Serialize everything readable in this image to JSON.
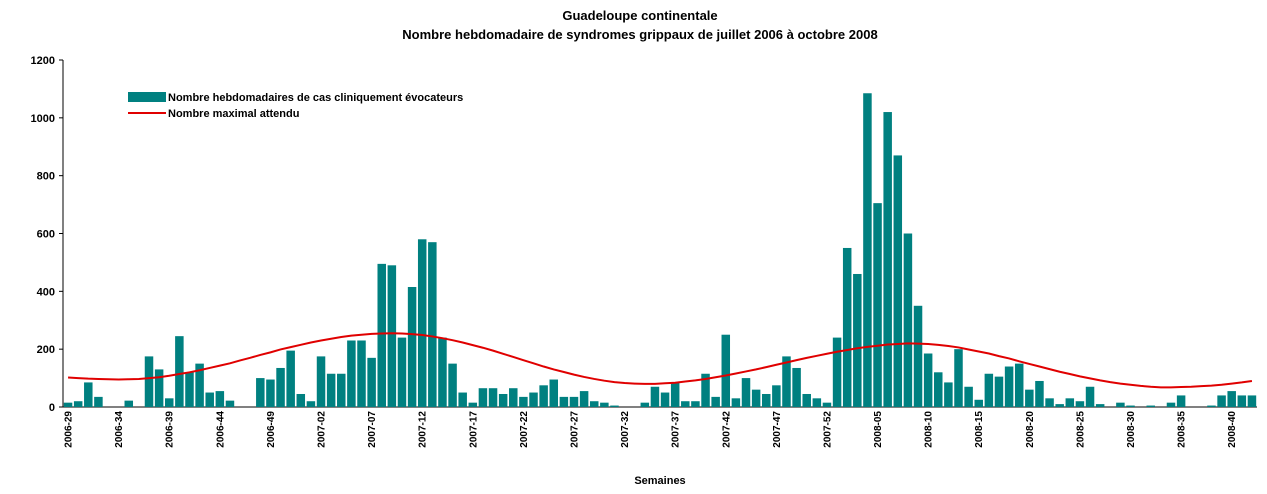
{
  "chart_data": {
    "type": "bar",
    "title": "Guadeloupe continentale",
    "subtitle": "Nombre hebdomadaire de syndromes grippaux de juillet 2006 à octobre 2008",
    "x_label": "Semaines",
    "categories": [
      "2006-29",
      null,
      null,
      null,
      null,
      "2006-34",
      null,
      null,
      null,
      null,
      "2006-39",
      null,
      null,
      null,
      null,
      "2006-44",
      null,
      null,
      null,
      null,
      "2006-49",
      null,
      null,
      null,
      null,
      "2007-02",
      null,
      null,
      null,
      null,
      "2007-07",
      null,
      null,
      null,
      null,
      "2007-12",
      null,
      null,
      null,
      null,
      "2007-17",
      null,
      null,
      null,
      null,
      "2007-22",
      null,
      null,
      null,
      null,
      "2007-27",
      null,
      null,
      null,
      null,
      "2007-32",
      null,
      null,
      null,
      null,
      "2007-37",
      null,
      null,
      null,
      null,
      "2007-42",
      null,
      null,
      null,
      null,
      "2007-47",
      null,
      null,
      null,
      null,
      "2007-52",
      null,
      null,
      null,
      null,
      "2008-05",
      null,
      null,
      null,
      null,
      "2008-10",
      null,
      null,
      null,
      null,
      "2008-15",
      null,
      null,
      null,
      null,
      "2008-20",
      null,
      null,
      null,
      null,
      "2008-25",
      null,
      null,
      null,
      null,
      "2008-30",
      null,
      null,
      null,
      null,
      "2008-35",
      null,
      null,
      null,
      null,
      "2008-40",
      null,
      null
    ],
    "series": [
      {
        "name": "Nombre hebdomadaires de cas cliniquement évocateurs",
        "type": "bar",
        "color": "#008080",
        "values": [
          15,
          20,
          85,
          35,
          0,
          0,
          22,
          0,
          175,
          130,
          30,
          245,
          120,
          150,
          50,
          55,
          22,
          0,
          0,
          100,
          95,
          135,
          195,
          45,
          20,
          175,
          115,
          115,
          230,
          230,
          170,
          495,
          490,
          240,
          415,
          580,
          570,
          240,
          150,
          50,
          15,
          65,
          65,
          45,
          65,
          35,
          50,
          75,
          95,
          35,
          35,
          55,
          20,
          15,
          5,
          0,
          0,
          15,
          70,
          50,
          85,
          20,
          20,
          115,
          35,
          250,
          30,
          100,
          60,
          45,
          75,
          175,
          135,
          45,
          30,
          15,
          240,
          550,
          460,
          1085,
          705,
          1020,
          870,
          600,
          350,
          185,
          120,
          85,
          200,
          70,
          25,
          115,
          105,
          140,
          150,
          60,
          90,
          30,
          10,
          30,
          20,
          70,
          10,
          0,
          15,
          5,
          0,
          5,
          0,
          15,
          40,
          0,
          0,
          5,
          40,
          55,
          40,
          40
        ]
      },
      {
        "name": "Nombre maximal attendu",
        "type": "line",
        "color": "#e00000",
        "values": [
          102,
          100,
          98,
          97,
          96,
          95,
          96,
          97,
          100,
          103,
          108,
          114,
          120,
          127,
          135,
          143,
          151,
          161,
          170,
          180,
          189,
          199,
          207,
          215,
          223,
          230,
          236,
          242,
          247,
          250,
          253,
          254,
          255,
          254,
          252,
          249,
          244,
          238,
          231,
          223,
          214,
          205,
          195,
          184,
          173,
          162,
          151,
          140,
          130,
          121,
          112,
          104,
          97,
          91,
          86,
          83,
          81,
          80,
          80,
          82,
          84,
          88,
          92,
          97,
          103,
          109,
          116,
          123,
          130,
          138,
          146,
          154,
          162,
          170,
          177,
          184,
          191,
          197,
          203,
          208,
          212,
          216,
          218,
          220,
          219,
          218,
          215,
          211,
          206,
          199,
          192,
          185,
          176,
          168,
          158,
          149,
          140,
          131,
          122,
          114,
          106,
          99,
          92,
          86,
          81,
          77,
          73,
          70,
          68,
          68,
          69,
          70,
          72,
          74,
          77,
          81,
          85,
          90
        ]
      }
    ],
    "ylim": [
      0,
      1200
    ],
    "yticks": [
      0,
      200,
      400,
      600,
      800,
      1000,
      1200
    ],
    "grid": false,
    "legend": "upper left"
  }
}
